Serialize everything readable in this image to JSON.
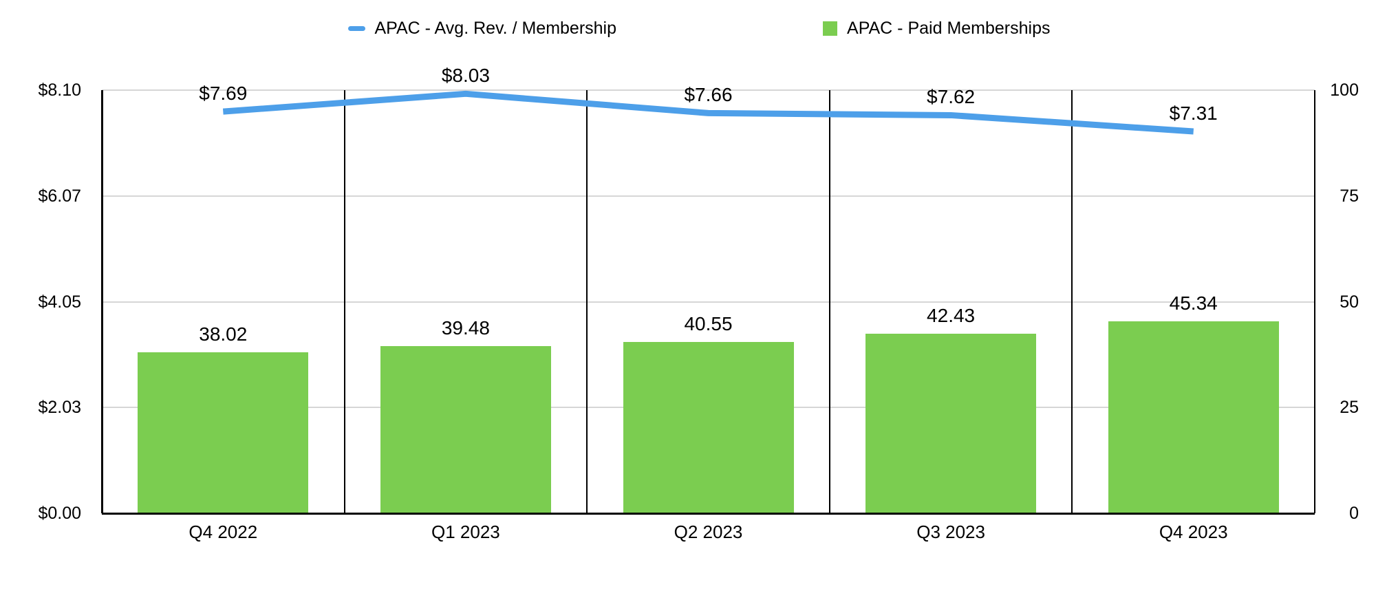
{
  "legend": {
    "items": [
      {
        "label": "APAC - Avg. Rev. / Membership",
        "series_type": "line",
        "color": "#4d9fe9"
      },
      {
        "label": "APAC - Paid Memberships",
        "series_type": "bar",
        "color": "#7bcd50"
      }
    ]
  },
  "chart_data": {
    "type": "combo",
    "categories": [
      "Q4 2022",
      "Q1 2023",
      "Q2 2023",
      "Q3 2023",
      "Q4 2023"
    ],
    "series": [
      {
        "name": "APAC - Avg. Rev. / Membership",
        "type": "line",
        "axis": "left",
        "color": "#4d9fe9",
        "values": [
          7.69,
          8.03,
          7.66,
          7.62,
          7.31
        ],
        "point_labels": [
          "$7.69",
          "$8.03",
          "$7.66",
          "$7.62",
          "$7.31"
        ]
      },
      {
        "name": "APAC - Paid Memberships",
        "type": "bar",
        "axis": "right",
        "color": "#7bcd50",
        "values": [
          38.02,
          39.48,
          40.55,
          42.43,
          45.34
        ],
        "point_labels": [
          "38.02",
          "39.48",
          "40.55",
          "42.43",
          "45.34"
        ]
      }
    ],
    "left_axis": {
      "min": 0,
      "max": 8.1,
      "ticks": [
        {
          "v": 0,
          "label": "$0.00"
        },
        {
          "v": 2.03,
          "label": "$2.03"
        },
        {
          "v": 4.05,
          "label": "$4.05"
        },
        {
          "v": 6.07,
          "label": "$6.07"
        },
        {
          "v": 8.1,
          "label": "$8.10"
        }
      ]
    },
    "right_axis": {
      "min": 0,
      "max": 100,
      "ticks": [
        {
          "v": 0,
          "label": "0"
        },
        {
          "v": 25,
          "label": "25"
        },
        {
          "v": 50,
          "label": "50"
        },
        {
          "v": 75,
          "label": "75"
        },
        {
          "v": 100,
          "label": "100"
        }
      ]
    },
    "grid": true,
    "legend_position": "top",
    "colors": {
      "grid": "#d6d6d6",
      "axis": "#000000",
      "background": "#ffffff"
    }
  }
}
